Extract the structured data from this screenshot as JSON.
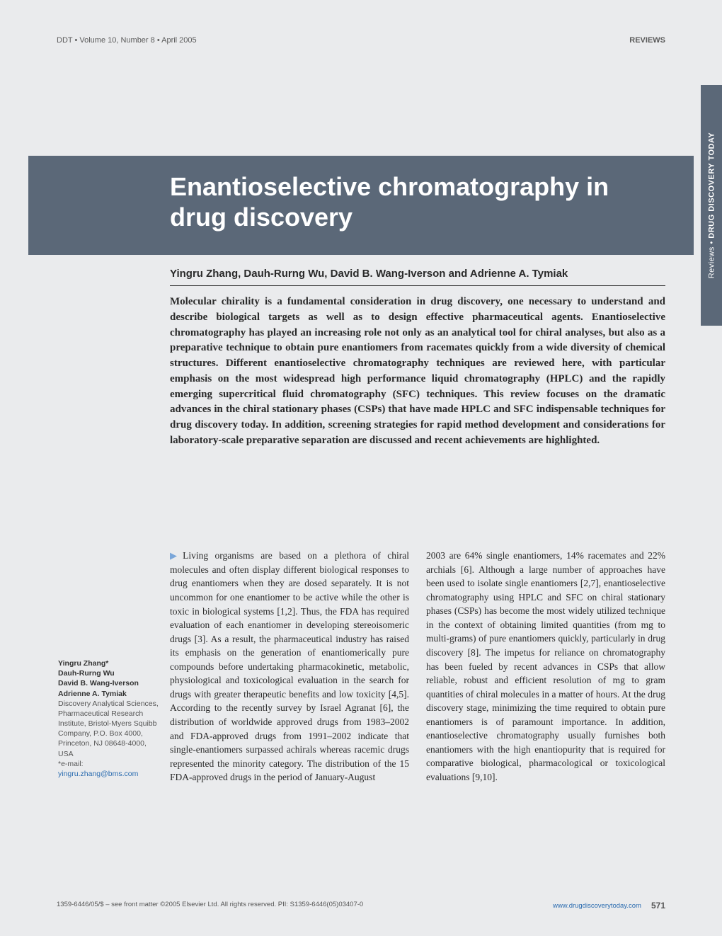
{
  "header": {
    "left": "DDT • Volume 10, Number 8 • April 2005",
    "right": "REVIEWS"
  },
  "side_tab": {
    "prefix": "Reviews • ",
    "bold": "DRUG DISCOVERY TODAY"
  },
  "title": "Enantioselective chromatography in drug discovery",
  "authors_line": "Yingru Zhang, Dauh-Rurng Wu, David B. Wang-Iverson and Adrienne A. Tymiak",
  "abstract": "Molecular chirality is a fundamental consideration in drug discovery, one necessary to understand and describe biological targets as well as to design effective pharmaceutical agents. Enantioselective chromatography has played an increasing role not only as an analytical tool for chiral analyses, but also as a preparative technique to obtain pure enantiomers from racemates quickly from a wide diversity of chemical structures. Different enantioselective chromatography techniques are reviewed here, with particular emphasis on the most widespread high performance liquid chromatography (HPLC) and the rapidly emerging supercritical fluid chromatography (SFC) techniques. This review focuses on the dramatic advances in the chiral stationary phases (CSPs) that have made HPLC and SFC indispensable techniques for drug discovery today. In addition, screening strategies for rapid method development and considerations for laboratory-scale preparative separation are discussed and recent achievements are highlighted.",
  "body": {
    "col1": "Living organisms are based on a plethora of chiral molecules and often display different biological responses to drug enantiomers when they are dosed separately. It is not uncommon for one enantiomer to be active while the other is toxic in biological systems [1,2]. Thus, the FDA has required evaluation of each enantiomer in developing stereoisomeric drugs [3]. As a result, the pharmaceutical industry has raised its emphasis on the generation of enantiomerically pure compounds before undertaking pharmacokinetic, metabolic, physiological and toxicological evaluation in the search for drugs with greater therapeutic benefits and low toxicity [4,5]. According to the recently survey by Israel Agranat [6], the distribution of worldwide approved drugs from 1983–2002 and FDA-approved drugs from 1991–2002 indicate that single-enantiomers surpassed achirals whereas racemic drugs represented the minority category. The distribution of the 15 FDA-approved drugs in the period of January-August",
    "col2": "2003 are 64% single enantiomers, 14% racemates and 22% archials [6].\n\nAlthough a large number of approaches have been used to isolate single enantiomers [2,7], enantioselective chromatography using HPLC and SFC on chiral stationary phases (CSPs) has become the most widely utilized technique in the context of obtaining limited quantities (from mg to multi-grams) of pure enantiomers quickly, particularly in drug discovery [8]. The impetus for reliance on chromatography has been fueled by recent advances in CSPs that allow reliable, robust and efficient resolution of mg to gram quantities of chiral molecules in a matter of hours. At the drug discovery stage, minimizing the time required to obtain pure enantiomers is of paramount importance. In addition, enantioselective chromatography usually furnishes both enantiomers with the high enantiopurity that is required for comparative biological, pharmacological or toxicological evaluations [9,10]."
  },
  "author_block": {
    "names": [
      "Yingru Zhang*",
      "Dauh-Rurng Wu",
      "David B. Wang-Iverson",
      "Adrienne A. Tymiak"
    ],
    "affiliation": "Discovery Analytical Sciences, Pharmaceutical Research Institute, Bristol-Myers Squibb Company, P.O. Box 4000, Princeton, NJ 08648-4000, USA",
    "email_label": "*e-mail:",
    "email": "yingru.zhang@bms.com"
  },
  "footer": {
    "left": "1359-6446/05/$ – see front matter  ©2005 Elsevier Ltd. All rights reserved.  PII: S1359-6446(05)03407-0",
    "url": "www.drugdiscoverytoday.com",
    "page": "571"
  },
  "colors": {
    "page_bg": "#eaebed",
    "title_bg": "#5b6878",
    "title_fg": "#ffffff",
    "body_text": "#2a2a2a",
    "link": "#2b6cb0",
    "muted": "#555555"
  }
}
